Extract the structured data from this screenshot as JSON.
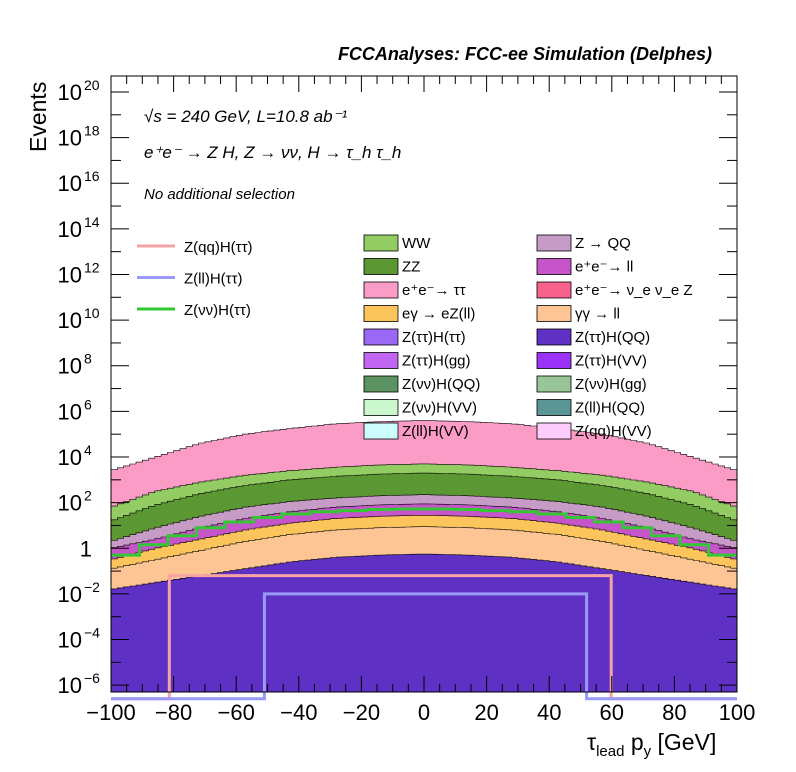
{
  "chart_data": {
    "type": "histogram",
    "title": "FCCAnalyses: FCC-ee Simulation (Delphes)",
    "ylabel": "Events",
    "xlabel": "τ_lead p_y [GeV]",
    "xlim": [
      -100,
      100
    ],
    "ylim_log10": [
      -6.3,
      20.7
    ],
    "yscale": "log",
    "x_ticks": [
      -100,
      -80,
      -60,
      -40,
      -20,
      0,
      20,
      40,
      60,
      80,
      100
    ],
    "y_ticks": [
      {
        "exp": -6,
        "label": "10",
        "sup": "−6"
      },
      {
        "exp": -4,
        "label": "10",
        "sup": "−4"
      },
      {
        "exp": -2,
        "label": "10",
        "sup": "−2"
      },
      {
        "exp": 0,
        "label": "1",
        "sup": ""
      },
      {
        "exp": 2,
        "label": "10",
        "sup": "2"
      },
      {
        "exp": 4,
        "label": "10",
        "sup": "4"
      },
      {
        "exp": 6,
        "label": "10",
        "sup": "6"
      },
      {
        "exp": 8,
        "label": "10",
        "sup": "8"
      },
      {
        "exp": 10,
        "label": "10",
        "sup": "10"
      },
      {
        "exp": 12,
        "label": "10",
        "sup": "12"
      },
      {
        "exp": 14,
        "label": "10",
        "sup": "14"
      },
      {
        "exp": 16,
        "label": "10",
        "sup": "16"
      },
      {
        "exp": 18,
        "label": "10",
        "sup": "18"
      },
      {
        "exp": 20,
        "label": "10",
        "sup": "20"
      }
    ],
    "annotations": {
      "energy": "√s = 240 GeV, L=10.8 ab⁻¹",
      "process": "e⁺e⁻ → Z H, Z → νν, H → τ_h τ_h",
      "selection": "No additional selection"
    },
    "stack_layers": [
      {
        "name": "e⁺e⁻ → ν_e ν_e Z",
        "color": "#f6628c",
        "levels": [
          1.3,
          2.4,
          3.0,
          3.45,
          3.75,
          3.95,
          4.05,
          4.1,
          4.05,
          3.95,
          3.75,
          3.45,
          3.0,
          2.4,
          1.3
        ]
      },
      {
        "name": "e⁺e⁻→ ττ",
        "color": "#fb9cc7",
        "levels": [
          3.4,
          4.0,
          4.6,
          5.0,
          5.25,
          5.45,
          5.55,
          5.6,
          5.55,
          5.45,
          5.25,
          5.0,
          4.6,
          4.0,
          3.4
        ]
      },
      {
        "name": "WW",
        "color": "#92cc62",
        "levels": [
          1.8,
          2.5,
          2.9,
          3.2,
          3.4,
          3.55,
          3.65,
          3.7,
          3.65,
          3.55,
          3.4,
          3.2,
          2.9,
          2.5,
          1.8
        ]
      },
      {
        "name": "ZZ",
        "color": "#5b9733",
        "levels": [
          1.2,
          1.9,
          2.4,
          2.75,
          3.0,
          3.15,
          3.25,
          3.3,
          3.25,
          3.15,
          3.0,
          2.75,
          2.4,
          1.9,
          1.2
        ]
      },
      {
        "name": "Z → QQ",
        "color": "#c69bc6",
        "levels": [
          0.3,
          0.9,
          1.4,
          1.8,
          2.05,
          2.2,
          2.3,
          2.35,
          2.3,
          2.2,
          2.05,
          1.8,
          1.4,
          0.9,
          0.3
        ]
      },
      {
        "name": "e⁺e⁻→ ll",
        "color": "#c555c8",
        "levels": [
          0.0,
          0.4,
          0.9,
          1.3,
          1.6,
          1.8,
          1.9,
          1.95,
          1.9,
          1.8,
          1.6,
          1.3,
          0.9,
          0.4,
          0.0
        ]
      },
      {
        "name": "eγ → eZ(ll)",
        "color": "#fcc55c",
        "levels": [
          -0.5,
          0.0,
          0.4,
          0.8,
          1.1,
          1.3,
          1.4,
          1.45,
          1.4,
          1.3,
          1.1,
          0.8,
          0.4,
          0.0,
          -0.5
        ]
      },
      {
        "name": "γγ → ll",
        "color": "#fdc594",
        "levels": [
          -0.9,
          -0.5,
          -0.1,
          0.3,
          0.6,
          0.8,
          0.9,
          0.95,
          0.9,
          0.8,
          0.6,
          0.3,
          -0.1,
          -0.5,
          -0.9
        ]
      },
      {
        "name": "Z(ττ)H(QQ)",
        "color": "#5e30c4",
        "levels": [
          -1.8,
          -1.5,
          -1.2,
          -0.9,
          -0.6,
          -0.4,
          -0.3,
          -0.25,
          -0.3,
          -0.4,
          -0.6,
          -0.9,
          -1.2,
          -1.5,
          -1.8
        ]
      }
    ],
    "lines": [
      {
        "name": "Z(qq)H(ττ)",
        "color": "#f7a3a3",
        "values": [
          -6.6,
          -6.6,
          -6.6,
          -6.6,
          -6.6,
          -6.6,
          -6.6,
          -6.6,
          -6.6,
          -6.6,
          -6.6,
          -6.6,
          -6.6,
          -6.6,
          -6.6,
          -6.6,
          -6.6,
          -6.6,
          -6.6,
          -1.2,
          -1.2,
          -1.2,
          -1.2,
          -1.2,
          -1.2,
          -1.2,
          -1.2,
          -1.2,
          -1.2,
          -1.2,
          -1.2,
          -1.2,
          -1.2,
          -1.2,
          -1.2,
          -1.2,
          -1.2,
          -1.2,
          -1.2,
          -1.2,
          -1.2,
          -1.2,
          -1.2,
          -1.2,
          -1.2,
          -1.2,
          -1.2,
          -1.2,
          -1.2,
          -1.2,
          -1.2,
          -1.2,
          -1.2,
          -1.2,
          -1.2,
          -1.2,
          -1.2,
          -1.2,
          -1.2,
          -1.2,
          -1.2,
          -1.2,
          -1.2,
          -1.2,
          -1.2,
          -1.2,
          -1.2,
          -1.2,
          -1.2,
          -1.2,
          -1.2,
          -1.2,
          -1.2,
          -1.2,
          -1.2,
          -1.2,
          -1.2,
          -1.2,
          -1.2,
          -1.2,
          -1.2,
          -1.2,
          -1.2,
          -1.2,
          -1.2,
          -1.2,
          -1.2,
          -1.2,
          -1.2,
          -1.2,
          -1.2,
          -1.2,
          -1.2,
          -1.2,
          -1.2,
          -1.2,
          -1.2,
          -1.2,
          -1.2,
          -1.2,
          -1.2,
          -1.2,
          -1.2,
          -1.2,
          -1.2,
          -1.2,
          -1.2,
          -1.2,
          -1.2,
          -1.2,
          -1.2,
          -1.2,
          -1.2,
          -1.2,
          -1.2,
          -1.2,
          -1.2,
          -1.2,
          -1.2,
          -1.2,
          -1.2,
          -1.2,
          -1.2,
          -1.2,
          -1.2,
          -1.2,
          -1.2,
          -1.2,
          -1.2,
          -1.2,
          -1.2,
          -1.2,
          -1.2,
          -1.2,
          -1.2,
          -1.2,
          -1.2,
          -1.2,
          -1.2,
          -1.2,
          -1.2,
          -1.2,
          -1.2,
          -1.2,
          -1.2,
          -1.2,
          -1.2,
          -1.2,
          -1.2,
          -1.2,
          -1.2,
          -1.2,
          -1.2,
          -1.2,
          -1.2,
          -1.2,
          -1.2,
          -1.2,
          -1.2,
          -1.2,
          -1.2,
          -1.2,
          -1.2,
          -6.6,
          -6.6,
          -6.6,
          -6.6,
          -6.6,
          -6.6,
          -6.6,
          -6.6,
          -6.6,
          -6.6,
          -6.6,
          -6.6,
          -6.6,
          -6.6,
          -6.6,
          -6.6,
          -6.6,
          -6.6,
          -6.6,
          -6.6,
          -6.6,
          -6.6,
          -6.6,
          -6.6,
          -6.6,
          -6.6,
          -6.6,
          -6.6,
          -6.6,
          -6.6,
          -6.6,
          -6.6,
          -6.6,
          -6.6,
          -6.6,
          -6.6,
          -6.6,
          -6.6,
          -6.6,
          -6.6,
          -6.6
        ]
      },
      {
        "name": "Z(ll)H(ττ)",
        "color": "#9999f8",
        "values": [
          -6.6,
          -6.6,
          -6.6,
          -6.6,
          -6.6,
          -6.6,
          -6.6,
          -6.6,
          -6.6,
          -6.6,
          -6.6,
          -6.6,
          -6.6,
          -6.6,
          -6.6,
          -6.6,
          -6.6,
          -6.6,
          -6.6,
          -6.6,
          -6.6,
          -6.6,
          -6.6,
          -6.6,
          -6.6,
          -6.6,
          -6.6,
          -6.6,
          -6.6,
          -6.6,
          -6.6,
          -6.6,
          -6.6,
          -6.6,
          -6.6,
          -6.6,
          -6.6,
          -6.6,
          -6.6,
          -6.6,
          -6.6,
          -6.6,
          -6.6,
          -6.6,
          -6.6,
          -6.6,
          -6.6,
          -6.6,
          -6.6,
          -6.6,
          -2.0,
          -2.0,
          -2.0,
          -2.0,
          -2.0,
          -2.0,
          -2.0,
          -2.0,
          -2.0,
          -2.0,
          -2.0,
          -2.0,
          -2.0,
          -2.0,
          -2.0,
          -2.0,
          -2.0,
          -2.0,
          -2.0,
          -2.0,
          -2.0,
          -2.0,
          -2.0,
          -2.0,
          -2.0,
          -2.0,
          -2.0,
          -2.0,
          -2.0,
          -2.0,
          -2.0,
          -2.0,
          -2.0,
          -2.0,
          -2.0,
          -2.0,
          -2.0,
          -2.0,
          -2.0,
          -2.0,
          -2.0,
          -2.0,
          -2.0,
          -2.0,
          -2.0,
          -2.0,
          -2.0,
          -2.0,
          -2.0,
          -2.0,
          -2.0,
          -2.0,
          -2.0,
          -2.0,
          -2.0,
          -2.0,
          -2.0,
          -2.0,
          -2.0,
          -2.0,
          -2.0,
          -2.0,
          -2.0,
          -2.0,
          -2.0,
          -2.0,
          -2.0,
          -2.0,
          -2.0,
          -2.0,
          -2.0,
          -2.0,
          -2.0,
          -2.0,
          -2.0,
          -2.0,
          -2.0,
          -2.0,
          -2.0,
          -2.0,
          -2.0,
          -2.0,
          -2.0,
          -2.0,
          -2.0,
          -2.0,
          -2.0,
          -2.0,
          -2.0,
          -2.0,
          -2.0,
          -2.0,
          -2.0,
          -2.0,
          -2.0,
          -2.0,
          -2.0,
          -2.0,
          -2.0,
          -2.0,
          -2.0,
          -2.0,
          -2.0,
          -2.0,
          -2.0,
          -6.6,
          -6.6,
          -6.6,
          -6.6,
          -6.6,
          -6.6,
          -6.6,
          -6.6,
          -6.6,
          -6.6,
          -6.6,
          -6.6,
          -6.6,
          -6.6,
          -6.6,
          -6.6,
          -6.6,
          -6.6,
          -6.6,
          -6.6,
          -6.6,
          -6.6,
          -6.6,
          -6.6,
          -6.6,
          -6.6,
          -6.6,
          -6.6,
          -6.6,
          -6.6,
          -6.6,
          -6.6,
          -6.6,
          -6.6,
          -6.6,
          -6.6,
          -6.6,
          -6.6,
          -6.6,
          -6.6,
          -6.6,
          -6.6,
          -6.6,
          -6.6,
          -6.6,
          -6.6,
          -6.6,
          -6.6,
          -6.6
        ]
      },
      {
        "name": "Z(νν)H(ττ)",
        "color": "#33c833",
        "values": [
          -0.3,
          0.15,
          0.55,
          0.9,
          1.15,
          1.35,
          1.5,
          1.6,
          1.65,
          1.7,
          1.72,
          1.72,
          1.7,
          1.65,
          1.6,
          1.5,
          1.35,
          1.15,
          0.9,
          0.55,
          0.15,
          -0.3
        ]
      }
    ],
    "legend": {
      "lines": [
        {
          "label": "Z(qq)H(ττ)",
          "color": "#f7a3a3"
        },
        {
          "label": "Z(ll)H(ττ)",
          "color": "#9999f8"
        },
        {
          "label": "Z(νν)H(ττ)",
          "color": "#33c833"
        }
      ],
      "col1": [
        {
          "label": "WW",
          "color": "#92cc62"
        },
        {
          "label": "ZZ",
          "color": "#5b9733"
        },
        {
          "label": "e⁺e⁻→ ττ",
          "color": "#fb9cc7"
        },
        {
          "label": "eγ → eZ(ll)",
          "color": "#fcc55c"
        },
        {
          "label": "Z(ττ)H(ττ)",
          "color": "#9b67f5"
        },
        {
          "label": "Z(ττ)H(gg)",
          "color": "#c166f2"
        },
        {
          "label": "Z(νν)H(QQ)",
          "color": "#5b9460"
        },
        {
          "label": "Z(νν)H(VV)",
          "color": "#cbf7cc"
        },
        {
          "label": "Z(ll)H(VV)",
          "color": "#ccfdfc"
        }
      ],
      "col2": [
        {
          "label": "Z → QQ",
          "color": "#c69bc6"
        },
        {
          "label": "e⁺e⁻→ ll",
          "color": "#c555c8"
        },
        {
          "label": "e⁺e⁻→ ν_e ν_e Z",
          "color": "#f6628c"
        },
        {
          "label": "γγ → ll",
          "color": "#fdc594"
        },
        {
          "label": "Z(ττ)H(QQ)",
          "color": "#5e30c4"
        },
        {
          "label": "Z(ττ)H(VV)",
          "color": "#9a33f7"
        },
        {
          "label": "Z(νν)H(gg)",
          "color": "#98c698"
        },
        {
          "label": "Z(ll)H(QQ)",
          "color": "#5a9696"
        },
        {
          "label": "Z(qq)H(VV)",
          "color": "#fccdfc"
        }
      ]
    }
  }
}
